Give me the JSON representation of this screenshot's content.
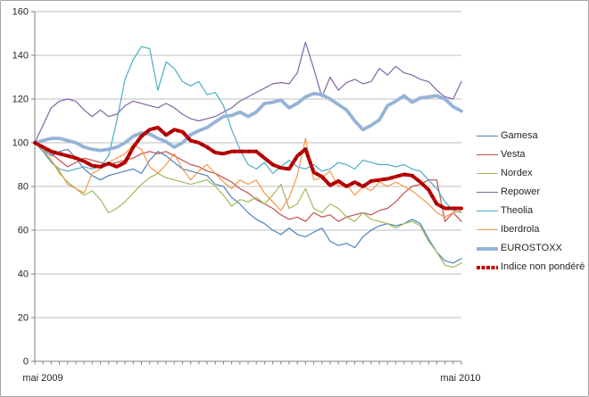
{
  "figure": {
    "background": "#ffffff",
    "border_color": "#a6a6a6",
    "gridline_color": "#bfbfbf",
    "axis_color": "#808080",
    "text_color": "#262626"
  },
  "chart_data": {
    "type": "line",
    "title": "",
    "xlabel": "",
    "ylabel": "",
    "x_axis": {
      "start_label": "mai 2009",
      "end_label": "mai 2010",
      "minor_ticks": 53,
      "unit": "weeks from mai 2009 to mai 2010"
    },
    "y_axis": {
      "min": 0,
      "max": 160,
      "step": 20,
      "ticks": [
        0,
        20,
        40,
        60,
        80,
        100,
        120,
        140,
        160
      ]
    },
    "grid": true,
    "legend_position": "right-middle",
    "base_index": 100,
    "series": [
      {
        "name": "Gamesa",
        "color": "#4F81BD",
        "width": 1.2,
        "thick": false,
        "values": [
          100,
          97,
          94,
          96,
          97,
          93,
          88,
          85,
          83,
          85,
          86,
          87,
          88,
          86,
          92,
          96,
          94,
          91,
          88,
          87,
          86,
          85,
          81,
          80,
          75,
          72,
          68,
          65,
          63,
          60,
          58,
          61,
          58,
          57,
          59,
          61,
          55,
          53,
          54,
          52,
          57,
          60,
          62,
          63,
          62,
          63,
          65,
          63,
          56,
          50,
          46,
          45,
          47
        ]
      },
      {
        "name": "Vesta",
        "color": "#C0504D",
        "width": 1.2,
        "thick": false,
        "values": [
          100,
          98,
          95,
          92,
          89,
          91,
          93,
          92,
          91,
          90,
          91,
          92,
          93,
          95,
          96,
          95,
          96,
          94,
          92,
          90,
          89,
          87,
          86,
          84,
          82,
          79,
          77,
          74,
          72,
          70,
          67,
          65,
          66,
          64,
          68,
          66,
          67,
          64,
          66,
          67,
          68,
          67,
          69,
          70,
          73,
          77,
          80,
          81,
          83,
          83,
          64,
          68,
          64
        ]
      },
      {
        "name": "Nordex",
        "color": "#9BBB59",
        "width": 1.2,
        "thick": false,
        "values": [
          100,
          96,
          92,
          86,
          82,
          79,
          76,
          78,
          74,
          68,
          70,
          73,
          77,
          81,
          84,
          86,
          84,
          83,
          82,
          81,
          82,
          83,
          80,
          76,
          71,
          74,
          73,
          75,
          72,
          76,
          81,
          70,
          72,
          79,
          70,
          68,
          72,
          70,
          66,
          64,
          68,
          65,
          64,
          63,
          61,
          63,
          64,
          62,
          55,
          50,
          44,
          43,
          45
        ]
      },
      {
        "name": "Repower",
        "color": "#8064A2",
        "width": 1.2,
        "thick": false,
        "values": [
          100,
          108,
          116,
          119,
          120,
          119,
          115,
          112,
          115,
          112,
          113,
          117,
          119,
          118,
          117,
          116,
          118,
          116,
          113,
          111,
          110,
          111,
          112,
          114,
          116,
          119,
          121,
          123,
          125,
          127,
          127.5,
          127,
          132,
          146,
          134,
          121,
          130,
          124,
          127.5,
          129,
          127,
          128,
          134,
          131,
          135,
          132,
          131,
          129,
          128,
          124,
          121,
          120,
          128
        ]
      },
      {
        "name": "Theolia",
        "color": "#4BACC6",
        "width": 1.2,
        "thick": false,
        "values": [
          100,
          96,
          91,
          88,
          87,
          88,
          89,
          88,
          89,
          94,
          110,
          129,
          138,
          144,
          143,
          124,
          137,
          134,
          128,
          126,
          128,
          122,
          123,
          117,
          106,
          97,
          90,
          88,
          91,
          86,
          89,
          92,
          89,
          88,
          90,
          87,
          88,
          91,
          90,
          88,
          92,
          91,
          90,
          90,
          89,
          90,
          88,
          87,
          83,
          79,
          73,
          69,
          68
        ]
      },
      {
        "name": "Iberdrola",
        "color": "#F79646",
        "width": 1.2,
        "thick": false,
        "values": [
          100,
          97,
          92,
          87,
          81,
          79,
          77,
          86,
          88,
          91,
          93,
          95,
          99,
          97,
          89,
          86,
          90,
          95,
          88,
          83,
          87,
          90,
          86,
          82,
          79,
          83,
          81,
          83,
          77,
          73,
          69,
          75,
          85,
          102,
          83,
          84,
          87,
          80,
          81,
          76,
          80,
          78,
          82,
          80,
          82,
          80,
          78,
          75,
          72,
          68,
          66,
          68,
          69
        ]
      },
      {
        "name": "EUROSTOXX",
        "color": "#95B3D7",
        "width": 3.8,
        "thick": true,
        "values": [
          100,
          101,
          102,
          102,
          101,
          100,
          98,
          97,
          96.5,
          97,
          98,
          100,
          103,
          104.5,
          104,
          102,
          100.5,
          98,
          100,
          103.7,
          105.5,
          107,
          109.5,
          112,
          112.5,
          114,
          112,
          114,
          118,
          118.5,
          119.5,
          116,
          118,
          121,
          122.5,
          122,
          120,
          117.5,
          115,
          110,
          106,
          108,
          110.5,
          117,
          119,
          121.5,
          118.5,
          120.5,
          121,
          121.5,
          120,
          116.5,
          114.5
        ]
      },
      {
        "name": "Indice non pondéré",
        "color": "#C00000",
        "width": 4,
        "thick": true,
        "dashed_texture": true,
        "values": [
          100,
          98,
          96,
          95,
          94,
          93,
          91.5,
          89.5,
          89,
          90.5,
          89,
          91,
          98,
          103,
          106,
          107,
          103.5,
          106,
          105,
          101,
          100,
          98,
          95.5,
          95,
          96,
          96,
          96,
          96,
          93,
          90,
          88.5,
          88,
          94,
          97,
          86.5,
          84.5,
          80.5,
          82.5,
          80,
          82,
          80,
          82.5,
          83,
          83.5,
          84.5,
          85.5,
          85,
          82,
          78.5,
          72,
          70,
          70,
          70
        ]
      }
    ]
  }
}
